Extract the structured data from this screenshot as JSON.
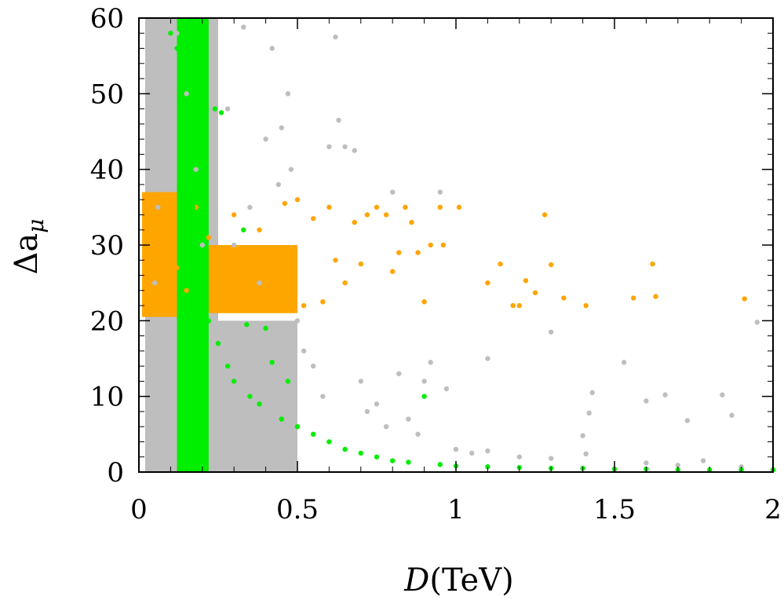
{
  "chart_data": {
    "type": "scatter",
    "title": "",
    "xlabel": "D(TeV)",
    "xlabel_var": "D",
    "xlabel_unit": "(TeV)",
    "ylabel": "Δa_μ",
    "ylabel_main": "Δa",
    "ylabel_sub": "μ",
    "xlim": [
      0,
      2
    ],
    "ylim": [
      0,
      60
    ],
    "x_ticks": [
      0,
      0.5,
      1,
      1.5,
      2
    ],
    "x_tick_labels": [
      "0",
      "0.5",
      "1",
      "1.5",
      "2"
    ],
    "y_ticks": [
      0,
      10,
      20,
      30,
      40,
      50,
      60
    ],
    "y_tick_labels": [
      "0",
      "10",
      "20",
      "30",
      "40",
      "50",
      "60"
    ],
    "grid": false,
    "series": [
      {
        "name": "all points",
        "color": "#bebebe",
        "points": [
          [
            0.03,
            5
          ],
          [
            0.04,
            15
          ],
          [
            0.05,
            25
          ],
          [
            0.06,
            35
          ],
          [
            0.07,
            45
          ],
          [
            0.08,
            55
          ],
          [
            0.12,
            58
          ],
          [
            0.15,
            50
          ],
          [
            0.18,
            40
          ],
          [
            0.2,
            30
          ],
          [
            0.22,
            20
          ],
          [
            0.25,
            15
          ],
          [
            0.28,
            48
          ],
          [
            0.3,
            30
          ],
          [
            0.33,
            58.8
          ],
          [
            0.35,
            35
          ],
          [
            0.38,
            25
          ],
          [
            0.4,
            44
          ],
          [
            0.42,
            56
          ],
          [
            0.44,
            38
          ],
          [
            0.45,
            45.5
          ],
          [
            0.47,
            50
          ],
          [
            0.48,
            40
          ],
          [
            0.5,
            20
          ],
          [
            0.52,
            16
          ],
          [
            0.55,
            14
          ],
          [
            0.58,
            10
          ],
          [
            0.6,
            43
          ],
          [
            0.62,
            57.5
          ],
          [
            0.63,
            46.5
          ],
          [
            0.65,
            43
          ],
          [
            0.68,
            42.5
          ],
          [
            0.7,
            12
          ],
          [
            0.72,
            8
          ],
          [
            0.75,
            9
          ],
          [
            0.78,
            6
          ],
          [
            0.8,
            37
          ],
          [
            0.82,
            13
          ],
          [
            0.85,
            7
          ],
          [
            0.88,
            5
          ],
          [
            0.9,
            12
          ],
          [
            0.92,
            14.5
          ],
          [
            0.95,
            37
          ],
          [
            0.97,
            11
          ],
          [
            1.0,
            3
          ],
          [
            1.05,
            2.5
          ],
          [
            1.1,
            15
          ],
          [
            1.2,
            2
          ],
          [
            1.3,
            18.5
          ],
          [
            1.4,
            4.8
          ],
          [
            1.41,
            2.4
          ],
          [
            1.42,
            7.8
          ],
          [
            1.43,
            10.5
          ],
          [
            1.53,
            14.5
          ],
          [
            1.6,
            9.4
          ],
          [
            1.66,
            10.2
          ],
          [
            1.73,
            6.8
          ],
          [
            1.78,
            1.5
          ],
          [
            1.84,
            10.2
          ],
          [
            1.87,
            7.5
          ],
          [
            1.95,
            19.8
          ],
          [
            1.6,
            1.2
          ],
          [
            1.7,
            0.9
          ],
          [
            1.9,
            0.7
          ],
          [
            1.3,
            1.8
          ],
          [
            1.1,
            2.8
          ]
        ]
      },
      {
        "name": "constraint-satisfying points",
        "color": "#ffa500",
        "points": [
          [
            0.02,
            36
          ],
          [
            0.05,
            33
          ],
          [
            0.08,
            30
          ],
          [
            0.12,
            27
          ],
          [
            0.15,
            24
          ],
          [
            0.18,
            35
          ],
          [
            0.22,
            31
          ],
          [
            0.26,
            28
          ],
          [
            0.3,
            34
          ],
          [
            0.34,
            25
          ],
          [
            0.38,
            32
          ],
          [
            0.42,
            29
          ],
          [
            0.46,
            35.5
          ],
          [
            0.5,
            36
          ],
          [
            0.52,
            22
          ],
          [
            0.55,
            33.5
          ],
          [
            0.58,
            22.5
          ],
          [
            0.6,
            35
          ],
          [
            0.62,
            28
          ],
          [
            0.65,
            25
          ],
          [
            0.68,
            33
          ],
          [
            0.7,
            27.5
          ],
          [
            0.72,
            34
          ],
          [
            0.75,
            35
          ],
          [
            0.78,
            34
          ],
          [
            0.8,
            26.5
          ],
          [
            0.82,
            29
          ],
          [
            0.84,
            35
          ],
          [
            0.86,
            33
          ],
          [
            0.88,
            29
          ],
          [
            0.9,
            22.5
          ],
          [
            0.92,
            30
          ],
          [
            0.95,
            35
          ],
          [
            0.96,
            30
          ],
          [
            1.01,
            35
          ],
          [
            1.1,
            25
          ],
          [
            1.14,
            27.5
          ],
          [
            1.18,
            22
          ],
          [
            1.2,
            22
          ],
          [
            1.22,
            25.3
          ],
          [
            1.25,
            23.7
          ],
          [
            1.28,
            34
          ],
          [
            1.3,
            27.4
          ],
          [
            1.34,
            23
          ],
          [
            1.41,
            22
          ],
          [
            1.56,
            23
          ],
          [
            1.62,
            27.5
          ],
          [
            1.63,
            23.2
          ],
          [
            1.91,
            22.9
          ]
        ]
      },
      {
        "name": "highlighted points",
        "color": "#00ee00",
        "points": [
          [
            0.1,
            58
          ],
          [
            0.12,
            56
          ],
          [
            0.13,
            52
          ],
          [
            0.14,
            48
          ],
          [
            0.15,
            45
          ],
          [
            0.16,
            40
          ],
          [
            0.17,
            35
          ],
          [
            0.18,
            30
          ],
          [
            0.2,
            25
          ],
          [
            0.21,
            59
          ],
          [
            0.22,
            20
          ],
          [
            0.24,
            48
          ],
          [
            0.25,
            17
          ],
          [
            0.26,
            47.5
          ],
          [
            0.28,
            14
          ],
          [
            0.3,
            12
          ],
          [
            0.33,
            32
          ],
          [
            0.34,
            19.5
          ],
          [
            0.35,
            10
          ],
          [
            0.38,
            9
          ],
          [
            0.4,
            19
          ],
          [
            0.42,
            14.5
          ],
          [
            0.45,
            7
          ],
          [
            0.47,
            12
          ],
          [
            0.5,
            6
          ],
          [
            0.55,
            5
          ],
          [
            0.6,
            4
          ],
          [
            0.65,
            3
          ],
          [
            0.7,
            2.5
          ],
          [
            0.75,
            2
          ],
          [
            0.8,
            1.5
          ],
          [
            0.85,
            1.3
          ],
          [
            0.9,
            10
          ],
          [
            0.95,
            1.0
          ],
          [
            1.0,
            0.8
          ],
          [
            1.1,
            0.7
          ],
          [
            1.2,
            0.6
          ],
          [
            1.3,
            0.5
          ],
          [
            1.4,
            0.5
          ],
          [
            1.5,
            0.4
          ],
          [
            1.6,
            0.4
          ],
          [
            1.7,
            0.3
          ],
          [
            1.8,
            0.3
          ],
          [
            1.9,
            0.3
          ],
          [
            2.0,
            0.3
          ]
        ]
      }
    ],
    "regions": [
      {
        "name": "gray-band-left",
        "color": "#bebebe",
        "from": [
          0.02,
          0
        ],
        "to": [
          0.05,
          60
        ]
      },
      {
        "name": "gray-column",
        "color": "#bebebe",
        "from": [
          0.02,
          0
        ],
        "to": [
          0.25,
          60
        ]
      },
      {
        "name": "gray-lower-block",
        "color": "#bebebe",
        "from": [
          0.02,
          0
        ],
        "to": [
          0.5,
          20
        ]
      },
      {
        "name": "orange-block-left",
        "color": "#ffa500",
        "from": [
          0.01,
          20.5
        ],
        "to": [
          0.2,
          37
        ]
      },
      {
        "name": "orange-block-right",
        "color": "#ffa500",
        "from": [
          0.2,
          21
        ],
        "to": [
          0.5,
          30
        ]
      },
      {
        "name": "green-curve-body",
        "color": "#00ee00",
        "from": [
          0.12,
          0
        ],
        "to": [
          0.22,
          60
        ]
      }
    ]
  }
}
